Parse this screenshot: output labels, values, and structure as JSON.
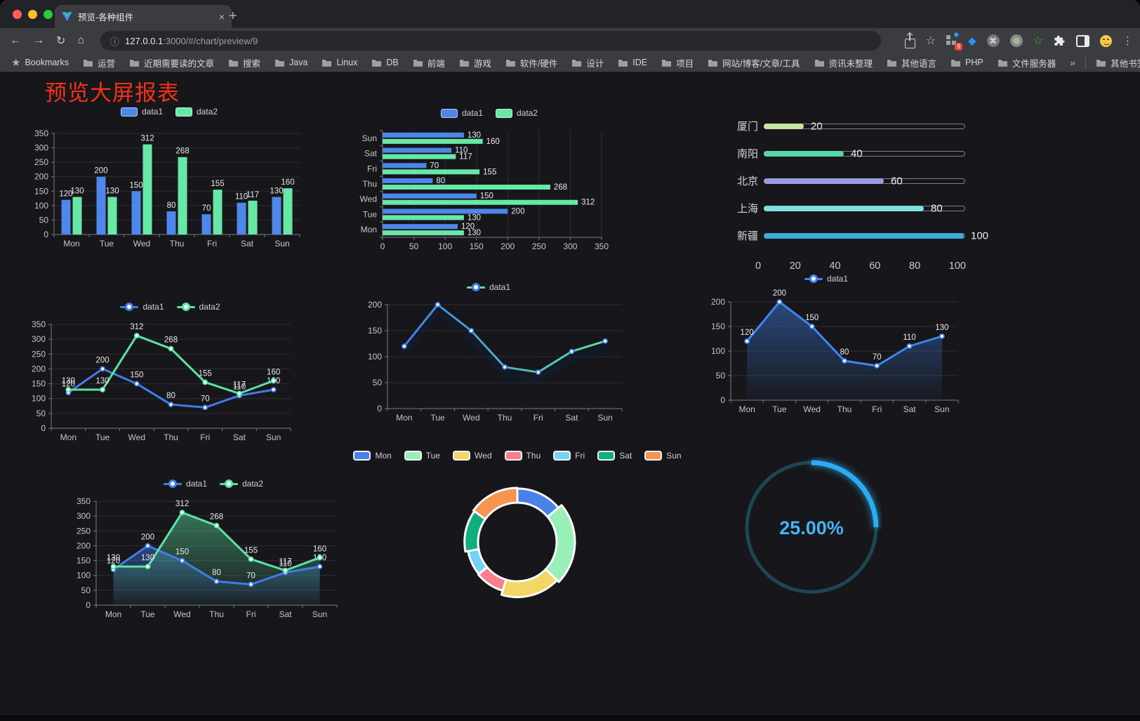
{
  "browser": {
    "tab_title": "预览-各种组件",
    "url_host": "127.0.0.1",
    "url_rest": ":3000/#/chart/preview/9",
    "bookmarks_label": "Bookmarks",
    "bookmarks": [
      "运营",
      "近期需要读的文章",
      "搜索",
      "Java",
      "Linux",
      "DB",
      "前端",
      "游戏",
      "软件/硬件",
      "设计",
      "IDE",
      "项目",
      "网站/博客/文章/工具",
      "资讯未整理",
      "其他语言",
      "PHP",
      "文件服务器"
    ],
    "overflow_chevron": "»",
    "other_bookmarks": "其他书签",
    "extension_badge": "9",
    "new_tab_button": "+",
    "close_tab": "×"
  },
  "page": {
    "title": "预览大屏报表",
    "title_color": "#f4321c"
  },
  "chart_data": [
    {
      "id": "grouped-bar",
      "type": "bar",
      "categories": [
        "Mon",
        "Tue",
        "Wed",
        "Thu",
        "Fri",
        "Sat",
        "Sun"
      ],
      "series": [
        {
          "name": "data1",
          "color": "#4C87E9",
          "values": [
            120,
            200,
            150,
            80,
            70,
            110,
            130
          ]
        },
        {
          "name": "data2",
          "color": "#67E8A7",
          "values": [
            130,
            130,
            312,
            268,
            155,
            117,
            160
          ]
        }
      ],
      "ylim": [
        0,
        350
      ],
      "y_ticks": [
        0,
        50,
        100,
        150,
        200,
        250,
        300,
        350
      ],
      "legend_position": "top",
      "grid": true
    },
    {
      "id": "horizontal-grouped-bar",
      "type": "bar",
      "orientation": "horizontal",
      "categories": [
        "Mon",
        "Tue",
        "Wed",
        "Thu",
        "Fri",
        "Sat",
        "Sun"
      ],
      "categories_top_to_bottom": [
        "Sun",
        "Sat",
        "Fri",
        "Thu",
        "Wed",
        "Tue",
        "Mon"
      ],
      "series": [
        {
          "name": "data1",
          "color": "#4C87E9",
          "values": [
            120,
            200,
            150,
            80,
            70,
            110,
            130
          ]
        },
        {
          "name": "data2",
          "color": "#67E8A7",
          "values": [
            130,
            130,
            312,
            268,
            155,
            117,
            160
          ]
        }
      ],
      "xlim": [
        0,
        350
      ],
      "x_ticks": [
        0,
        50,
        100,
        150,
        200,
        250,
        300,
        350
      ],
      "legend_position": "top",
      "grid": true
    },
    {
      "id": "city-progress",
      "type": "bar",
      "orientation": "horizontal",
      "style": "pill-progress",
      "items": [
        {
          "label": "厦门",
          "value": 20,
          "color": "#C3E6A5"
        },
        {
          "label": "南阳",
          "value": 40,
          "color": "#55D8A6"
        },
        {
          "label": "北京",
          "value": 60,
          "color": "#989CE0"
        },
        {
          "label": "上海",
          "value": 80,
          "color": "#7FE0E0"
        },
        {
          "label": "新疆",
          "value": 100,
          "color": "#3CAADC"
        }
      ],
      "xlim": [
        0,
        100
      ],
      "x_ticks": [
        0,
        20,
        40,
        60,
        80,
        100
      ]
    },
    {
      "id": "two-series-line",
      "type": "line",
      "categories": [
        "Mon",
        "Tue",
        "Wed",
        "Thu",
        "Fri",
        "Sat",
        "Sun"
      ],
      "series": [
        {
          "name": "data1",
          "color": "#3F7EE9",
          "values": [
            120,
            200,
            150,
            80,
            70,
            110,
            130
          ]
        },
        {
          "name": "data2",
          "color": "#5CE3A3",
          "values": [
            130,
            130,
            312,
            268,
            155,
            117,
            160
          ]
        }
      ],
      "ylim": [
        0,
        350
      ],
      "y_ticks": [
        0,
        50,
        100,
        150,
        200,
        250,
        300,
        350
      ],
      "show_point_labels": true,
      "legend_position": "top"
    },
    {
      "id": "gradient-line",
      "type": "line",
      "categories": [
        "Mon",
        "Tue",
        "Wed",
        "Thu",
        "Fri",
        "Sat",
        "Sun"
      ],
      "series": [
        {
          "name": "data1",
          "color_start": "#3F7EE9",
          "color_end": "#57E0A5",
          "values": [
            120,
            200,
            150,
            80,
            70,
            110,
            130
          ]
        }
      ],
      "ylim": [
        0,
        200
      ],
      "y_ticks": [
        0,
        50,
        100,
        150,
        200
      ],
      "show_point_labels": false,
      "legend_position": "top"
    },
    {
      "id": "area-line",
      "type": "area",
      "categories": [
        "Mon",
        "Tue",
        "Wed",
        "Thu",
        "Fri",
        "Sat",
        "Sun"
      ],
      "series": [
        {
          "name": "data1",
          "color": "#3F86EF",
          "area": true,
          "values": [
            120,
            200,
            150,
            80,
            70,
            110,
            130
          ]
        }
      ],
      "ylim": [
        0,
        200
      ],
      "y_ticks": [
        0,
        50,
        100,
        150,
        200
      ],
      "show_point_labels": true,
      "legend_position": "top"
    },
    {
      "id": "two-series-area-line",
      "type": "area",
      "categories": [
        "Mon",
        "Tue",
        "Wed",
        "Thu",
        "Fri",
        "Sat",
        "Sun"
      ],
      "series": [
        {
          "name": "data1",
          "color": "#3F7EE9",
          "area": true,
          "values": [
            120,
            200,
            150,
            80,
            70,
            110,
            130
          ]
        },
        {
          "name": "data2",
          "color": "#5CE3A3",
          "area": true,
          "values": [
            130,
            130,
            312,
            268,
            155,
            117,
            160
          ]
        }
      ],
      "ylim": [
        0,
        350
      ],
      "y_ticks": [
        0,
        50,
        100,
        150,
        200,
        250,
        300,
        350
      ],
      "show_point_labels": true,
      "legend_position": "top"
    },
    {
      "id": "rose-pie",
      "type": "pie",
      "rose": true,
      "legend_position": "top",
      "slices": [
        {
          "label": "Mon",
          "value": 120,
          "color": "#4A80EA"
        },
        {
          "label": "Tue",
          "value": 200,
          "color": "#97F0B6"
        },
        {
          "label": "Wed",
          "value": 150,
          "color": "#F4D666"
        },
        {
          "label": "Thu",
          "value": 80,
          "color": "#FA7E8B"
        },
        {
          "label": "Fri",
          "value": 70,
          "color": "#74D2F8"
        },
        {
          "label": "Sat",
          "value": 110,
          "color": "#0FAE7D"
        },
        {
          "label": "Sun",
          "value": 130,
          "color": "#F7944F"
        }
      ]
    },
    {
      "id": "gauge",
      "type": "gauge",
      "percent": 25,
      "label": "25.00%",
      "color": "#29ACF1",
      "track_color": "#1C4754"
    }
  ]
}
